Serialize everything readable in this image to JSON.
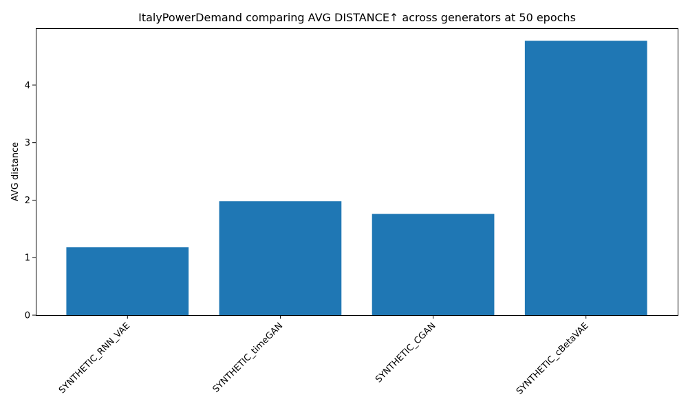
{
  "chart_data": {
    "type": "bar",
    "title": "ItalyPowerDemand comparing AVG DISTANCE↑ across generators at 50 epochs",
    "xlabel": "",
    "ylabel": "AVG distance",
    "categories": [
      "SYNTHETIC_RNN_VAE",
      "SYNTHETIC_timeGAN",
      "SYNTHETIC_CGAN",
      "SYNTHETIC_cBetaVAE"
    ],
    "values": [
      1.18,
      1.98,
      1.76,
      4.77
    ],
    "ylim": [
      0,
      4.99
    ],
    "yticks": [
      0,
      1,
      2,
      3,
      4
    ],
    "grid": false,
    "legend": "none",
    "bar_color": "#1f77b4",
    "xtick_rotation": 45
  }
}
